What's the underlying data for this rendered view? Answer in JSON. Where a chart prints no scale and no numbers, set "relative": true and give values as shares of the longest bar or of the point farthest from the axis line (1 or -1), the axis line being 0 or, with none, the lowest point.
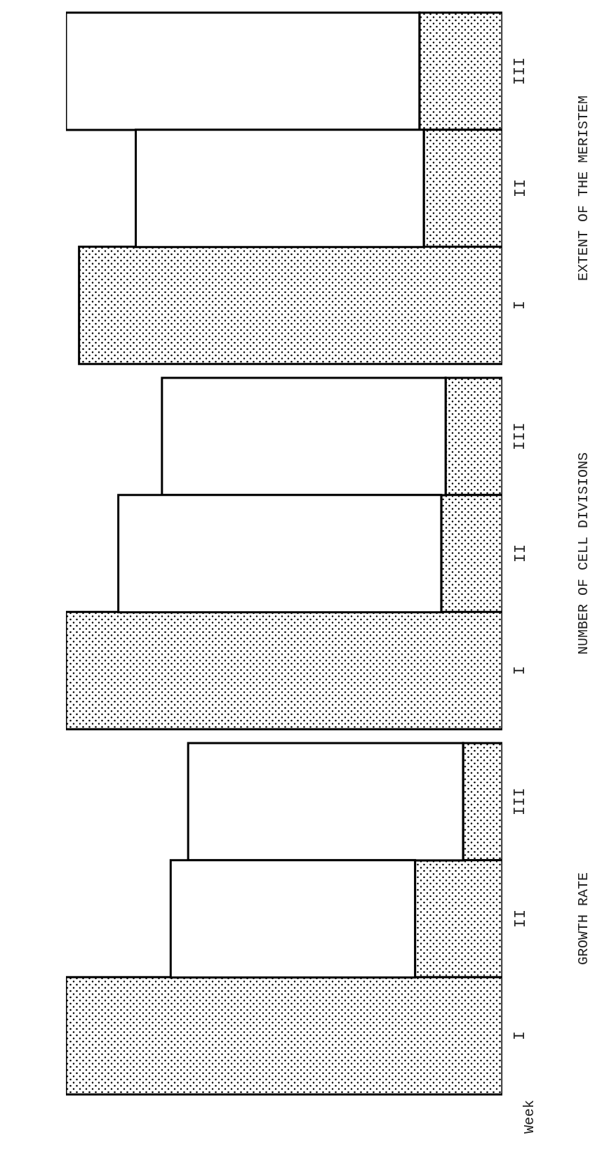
{
  "chart_data": [
    {
      "type": "bar",
      "orientation": "horizontal",
      "stacked": true,
      "relative": true,
      "categories": [
        "III",
        "II",
        "I"
      ],
      "ylabel": "EXTENT OF THE MERISTEM",
      "series": [
        {
          "color": "#000000",
          "values": [
            0.19,
            0.18,
            0.97
          ]
        },
        {
          "color": "#ffffff",
          "values": [
            0.81,
            0.66,
            null
          ]
        }
      ]
    },
    {
      "type": "bar",
      "orientation": "horizontal",
      "stacked": true,
      "relative": true,
      "categories": [
        "III",
        "II",
        "I"
      ],
      "ylabel": "NUMBER OF CELL DIVISIONS",
      "series": [
        {
          "color": "#000000",
          "values": [
            0.13,
            0.14,
            1
          ]
        },
        {
          "color": "#ffffff",
          "values": [
            0.65,
            0.74,
            null
          ]
        }
      ]
    },
    {
      "type": "bar",
      "orientation": "horizontal",
      "stacked": true,
      "relative": true,
      "categories": [
        "III",
        "II",
        "I"
      ],
      "ylabel": "GROWTH RATE",
      "annotations": [
        "Week"
      ],
      "series": [
        {
          "color": "#000000",
          "values": [
            0.09,
            0.2,
            1
          ]
        },
        {
          "color": "#ffffff",
          "values": [
            0.63,
            0.56,
            null
          ]
        }
      ]
    }
  ]
}
